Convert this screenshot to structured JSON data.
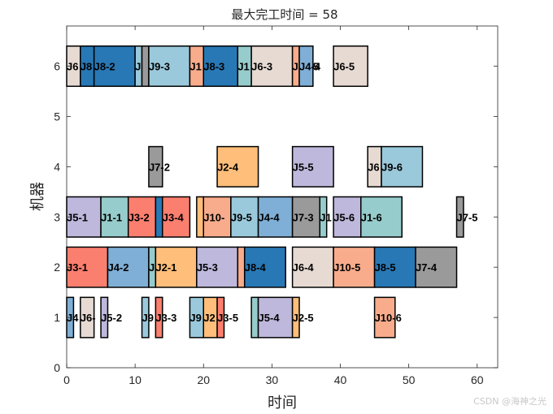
{
  "watermark": "CSDN @海神之光",
  "chart_data": {
    "type": "gantt",
    "title": "最大完工时间 = 58",
    "xlabel": "时间",
    "ylabel": "机器",
    "xlim": [
      0,
      63
    ],
    "ylim": [
      0,
      6.8
    ],
    "xticks": [
      "0",
      "10",
      "20",
      "30",
      "40",
      "50",
      "60"
    ],
    "yticks": [
      "0",
      "1",
      "2",
      "3",
      "4",
      "5",
      "6"
    ],
    "bar_height": 0.8,
    "tasks": [
      {
        "machine": 6,
        "start": 0,
        "end": 2,
        "label": "J6",
        "color": "#E6DAD2"
      },
      {
        "machine": 6,
        "start": 2,
        "end": 4,
        "label": "J8",
        "color": "#2878B5"
      },
      {
        "machine": 6,
        "start": 4,
        "end": 10,
        "label": "J8-2",
        "color": "#2878B5"
      },
      {
        "machine": 6,
        "start": 10,
        "end": 11,
        "label": "J",
        "color": "#9AC9DB"
      },
      {
        "machine": 6,
        "start": 11,
        "end": 12,
        "label": "",
        "color": "#9A9A9A"
      },
      {
        "machine": 6,
        "start": 12,
        "end": 18,
        "label": "J9-3",
        "color": "#9AC9DB"
      },
      {
        "machine": 6,
        "start": 18,
        "end": 20,
        "label": "J1",
        "color": "#F8AC8C"
      },
      {
        "machine": 6,
        "start": 20,
        "end": 25,
        "label": "J8-3",
        "color": "#2878B5"
      },
      {
        "machine": 6,
        "start": 25,
        "end": 27,
        "label": "J1",
        "color": "#96CCCB"
      },
      {
        "machine": 6,
        "start": 27,
        "end": 33,
        "label": "J6-3",
        "color": "#E6DAD2"
      },
      {
        "machine": 6,
        "start": 33,
        "end": 34,
        "label": "J",
        "color": "#F8AC8C"
      },
      {
        "machine": 6,
        "start": 34,
        "end": 36,
        "label": "J4-4",
        "color": "#7FAFD6"
      },
      {
        "machine": 6,
        "start": 36,
        "end": 36,
        "label": "5",
        "color": "#7FAFD6"
      },
      {
        "machine": 6,
        "start": 39,
        "end": 44,
        "label": "J6-5",
        "color": "#E6DAD2"
      },
      {
        "machine": 4,
        "start": 12,
        "end": 14,
        "label": "J7-2",
        "color": "#9A9A9A"
      },
      {
        "machine": 4,
        "start": 22,
        "end": 28,
        "label": "J2-4",
        "color": "#FFBE7A"
      },
      {
        "machine": 4,
        "start": 33,
        "end": 39,
        "label": "J5-5",
        "color": "#BEB8DC"
      },
      {
        "machine": 4,
        "start": 44,
        "end": 46,
        "label": "J6",
        "color": "#E6DAD2"
      },
      {
        "machine": 4,
        "start": 46,
        "end": 52,
        "label": "J9-6",
        "color": "#9AC9DB"
      },
      {
        "machine": 3,
        "start": 0,
        "end": 5,
        "label": "J5-1",
        "color": "#BEB8DC"
      },
      {
        "machine": 3,
        "start": 5,
        "end": 9,
        "label": "J1-1",
        "color": "#96CCCB"
      },
      {
        "machine": 3,
        "start": 9,
        "end": 13,
        "label": "J3-2",
        "color": "#FA7F6F"
      },
      {
        "machine": 3,
        "start": 13,
        "end": 14,
        "label": "",
        "color": "#2878B5"
      },
      {
        "machine": 3,
        "start": 14,
        "end": 18,
        "label": "J3-4",
        "color": "#FA7F6F"
      },
      {
        "machine": 3,
        "start": 19,
        "end": 20,
        "label": "",
        "color": "#FFBE7A"
      },
      {
        "machine": 3,
        "start": 20,
        "end": 24,
        "label": "J10-",
        "color": "#F8AC8C"
      },
      {
        "machine": 3,
        "start": 24,
        "end": 28,
        "label": "J9-5",
        "color": "#9AC9DB"
      },
      {
        "machine": 3,
        "start": 28,
        "end": 33,
        "label": "J4-4",
        "color": "#7FAFD6"
      },
      {
        "machine": 3,
        "start": 33,
        "end": 37,
        "label": "J7-3",
        "color": "#9A9A9A"
      },
      {
        "machine": 3,
        "start": 37,
        "end": 38,
        "label": "J1",
        "color": "#96CCCB"
      },
      {
        "machine": 3,
        "start": 39,
        "end": 43,
        "label": "J5-6",
        "color": "#BEB8DC"
      },
      {
        "machine": 3,
        "start": 43,
        "end": 49,
        "label": "J1-6",
        "color": "#96CCCB"
      },
      {
        "machine": 3,
        "start": 57,
        "end": 58,
        "label": "J7-5",
        "color": "#9A9A9A"
      },
      {
        "machine": 2,
        "start": 0,
        "end": 6,
        "label": "J3-1",
        "color": "#FA7F6F"
      },
      {
        "machine": 2,
        "start": 6,
        "end": 12,
        "label": "J4-2",
        "color": "#7FAFD6"
      },
      {
        "machine": 2,
        "start": 12,
        "end": 13,
        "label": "J",
        "color": "#96CCCB"
      },
      {
        "machine": 2,
        "start": 13,
        "end": 19,
        "label": "J2-1",
        "color": "#FFBE7A"
      },
      {
        "machine": 2,
        "start": 19,
        "end": 25,
        "label": "J5-3",
        "color": "#BEB8DC"
      },
      {
        "machine": 2,
        "start": 25,
        "end": 26,
        "label": "",
        "color": "#F8AC8C"
      },
      {
        "machine": 2,
        "start": 26,
        "end": 32,
        "label": "J8-4",
        "color": "#2878B5"
      },
      {
        "machine": 2,
        "start": 33,
        "end": 39,
        "label": "J6-4",
        "color": "#E6DAD2"
      },
      {
        "machine": 2,
        "start": 39,
        "end": 45,
        "label": "J10-5",
        "color": "#F8AC8C"
      },
      {
        "machine": 2,
        "start": 45,
        "end": 51,
        "label": "J8-5",
        "color": "#2878B5"
      },
      {
        "machine": 2,
        "start": 51,
        "end": 57,
        "label": "J7-4",
        "color": "#9A9A9A"
      },
      {
        "machine": 1,
        "start": 0,
        "end": 1,
        "label": "J4",
        "color": "#7FAFD6"
      },
      {
        "machine": 1,
        "start": 2,
        "end": 4,
        "label": "J6-",
        "color": "#E6DAD2"
      },
      {
        "machine": 1,
        "start": 5,
        "end": 6,
        "label": "J5-2",
        "color": "#BEB8DC"
      },
      {
        "machine": 1,
        "start": 11,
        "end": 12,
        "label": "J9",
        "color": "#9AC9DB"
      },
      {
        "machine": 1,
        "start": 13,
        "end": 14,
        "label": "J3-3",
        "color": "#FA7F6F"
      },
      {
        "machine": 1,
        "start": 18,
        "end": 20,
        "label": "J9",
        "color": "#9AC9DB"
      },
      {
        "machine": 1,
        "start": 20,
        "end": 22,
        "label": "J2",
        "color": "#FFBE7A"
      },
      {
        "machine": 1,
        "start": 22,
        "end": 23,
        "label": "J3-5",
        "color": "#FA7F6F"
      },
      {
        "machine": 1,
        "start": 27,
        "end": 28,
        "label": "",
        "color": "#96CCCB"
      },
      {
        "machine": 1,
        "start": 28,
        "end": 33,
        "label": "J5-4",
        "color": "#BEB8DC"
      },
      {
        "machine": 1,
        "start": 33,
        "end": 34,
        "label": "J2-5",
        "color": "#FFBE7A"
      },
      {
        "machine": 1,
        "start": 45,
        "end": 48,
        "label": "J10-6",
        "color": "#F8AC8C"
      }
    ]
  }
}
